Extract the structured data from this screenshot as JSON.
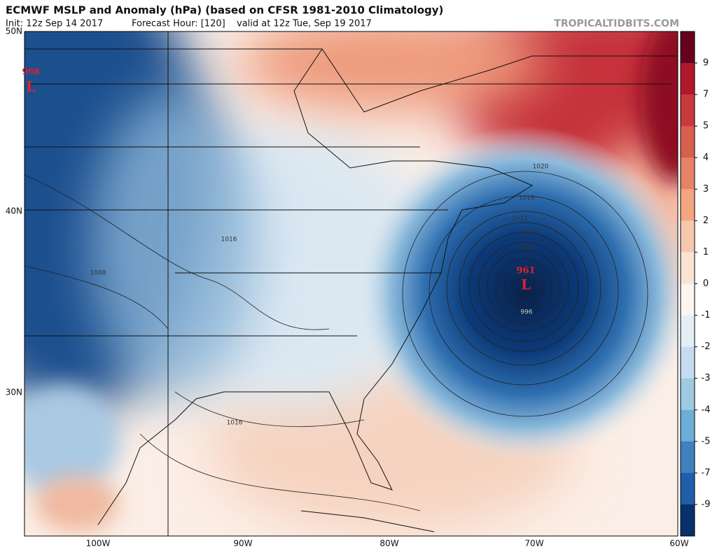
{
  "header": {
    "title": "ECMWF MSLP and Anomaly (hPa) (based on CFSR 1981-2010 Climatology)",
    "init": "Init: 12z Sep 14 2017",
    "forecast_hour": "Forecast Hour: [120]",
    "valid": "valid at 12z Tue, Sep 19 2017",
    "watermark": "TROPICALTIDBITS.COM"
  },
  "map": {
    "lat_labels": [
      "50N",
      "40N",
      "30N"
    ],
    "lon_labels": [
      "100W",
      "90W",
      "80W",
      "70W",
      "60W"
    ],
    "lows": [
      {
        "pressure": "998",
        "symbol": "L"
      },
      {
        "pressure": "961",
        "symbol": "L"
      }
    ],
    "contour_labels": [
      "1020",
      "1016",
      "1012",
      "1008",
      "1004",
      "996",
      "1016",
      "1008",
      "1016"
    ]
  },
  "colorbar": {
    "labels": [
      "9",
      "7",
      "5",
      "4",
      "3",
      "2",
      "1",
      "0",
      "-1",
      "-2",
      "-3",
      "-4",
      "-5",
      "-7",
      "-9"
    ]
  }
}
